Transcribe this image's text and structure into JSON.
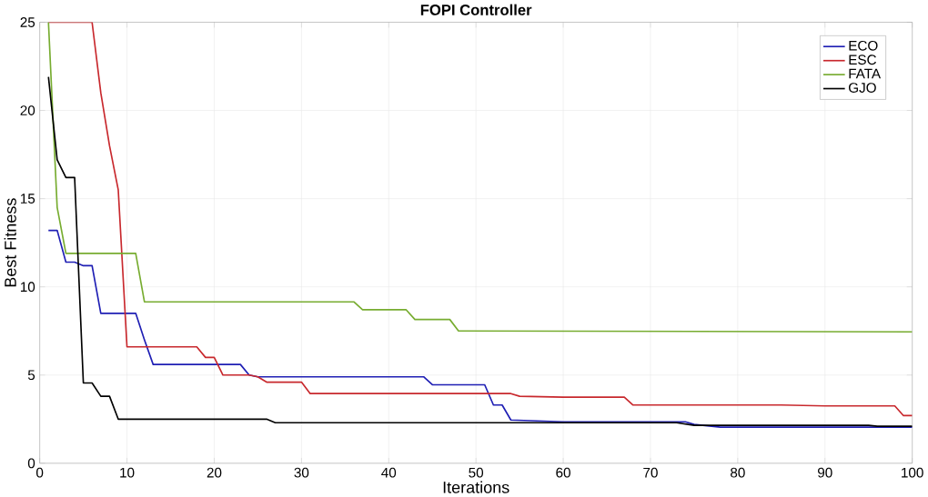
{
  "chart_data": {
    "type": "line",
    "title": "FOPI Controller",
    "xlabel": "Iterations",
    "ylabel": "Best Fitness",
    "xlim": [
      0,
      100
    ],
    "ylim": [
      0,
      25
    ],
    "xticks": [
      0,
      10,
      20,
      30,
      40,
      50,
      60,
      70,
      80,
      90,
      100
    ],
    "yticks": [
      0,
      5,
      10,
      15,
      20,
      25
    ],
    "grid": true,
    "legend": "top right",
    "series": [
      {
        "name": "ECO",
        "color": "#1f1fb4",
        "x": [
          1,
          2,
          3,
          4,
          5,
          6,
          7,
          11,
          12,
          13,
          23,
          24,
          25,
          44,
          45,
          51,
          52,
          53,
          54,
          57,
          60,
          74,
          75,
          78,
          100
        ],
        "values": [
          13.2,
          13.2,
          11.4,
          11.4,
          11.2,
          11.2,
          8.5,
          8.5,
          7,
          5.6,
          5.6,
          5.0,
          4.9,
          4.9,
          4.45,
          4.45,
          3.3,
          3.3,
          2.45,
          2.4,
          2.35,
          2.35,
          2.2,
          2.05,
          2.05
        ]
      },
      {
        "name": "ESC",
        "color": "#c8282d",
        "x": [
          1,
          6,
          7,
          8,
          9,
          10,
          18,
          19,
          20,
          21,
          24,
          25,
          26,
          30,
          31,
          54,
          55,
          60,
          67,
          68,
          85,
          90,
          98,
          99,
          100
        ],
        "values": [
          25,
          25,
          21,
          18,
          15.5,
          6.6,
          6.6,
          6.0,
          6.0,
          5.0,
          5.0,
          4.9,
          4.6,
          4.6,
          3.95,
          3.95,
          3.8,
          3.75,
          3.75,
          3.3,
          3.3,
          3.25,
          3.25,
          2.7,
          2.7
        ]
      },
      {
        "name": "FATA",
        "color": "#77ac30",
        "x": [
          1,
          2,
          3,
          11,
          12,
          36,
          37,
          42,
          43,
          47,
          48,
          100
        ],
        "values": [
          25,
          14.5,
          11.9,
          11.9,
          9.15,
          9.15,
          8.7,
          8.7,
          8.15,
          8.15,
          7.5,
          7.45
        ]
      },
      {
        "name": "GJO",
        "color": "#000000",
        "x": [
          1,
          2,
          3,
          4,
          5,
          6,
          7,
          8,
          9,
          26,
          27,
          73,
          75,
          95,
          96,
          100
        ],
        "values": [
          21.9,
          17.2,
          16.2,
          16.2,
          4.55,
          4.55,
          3.8,
          3.8,
          2.5,
          2.5,
          2.3,
          2.3,
          2.15,
          2.15,
          2.1,
          2.1
        ]
      }
    ]
  }
}
